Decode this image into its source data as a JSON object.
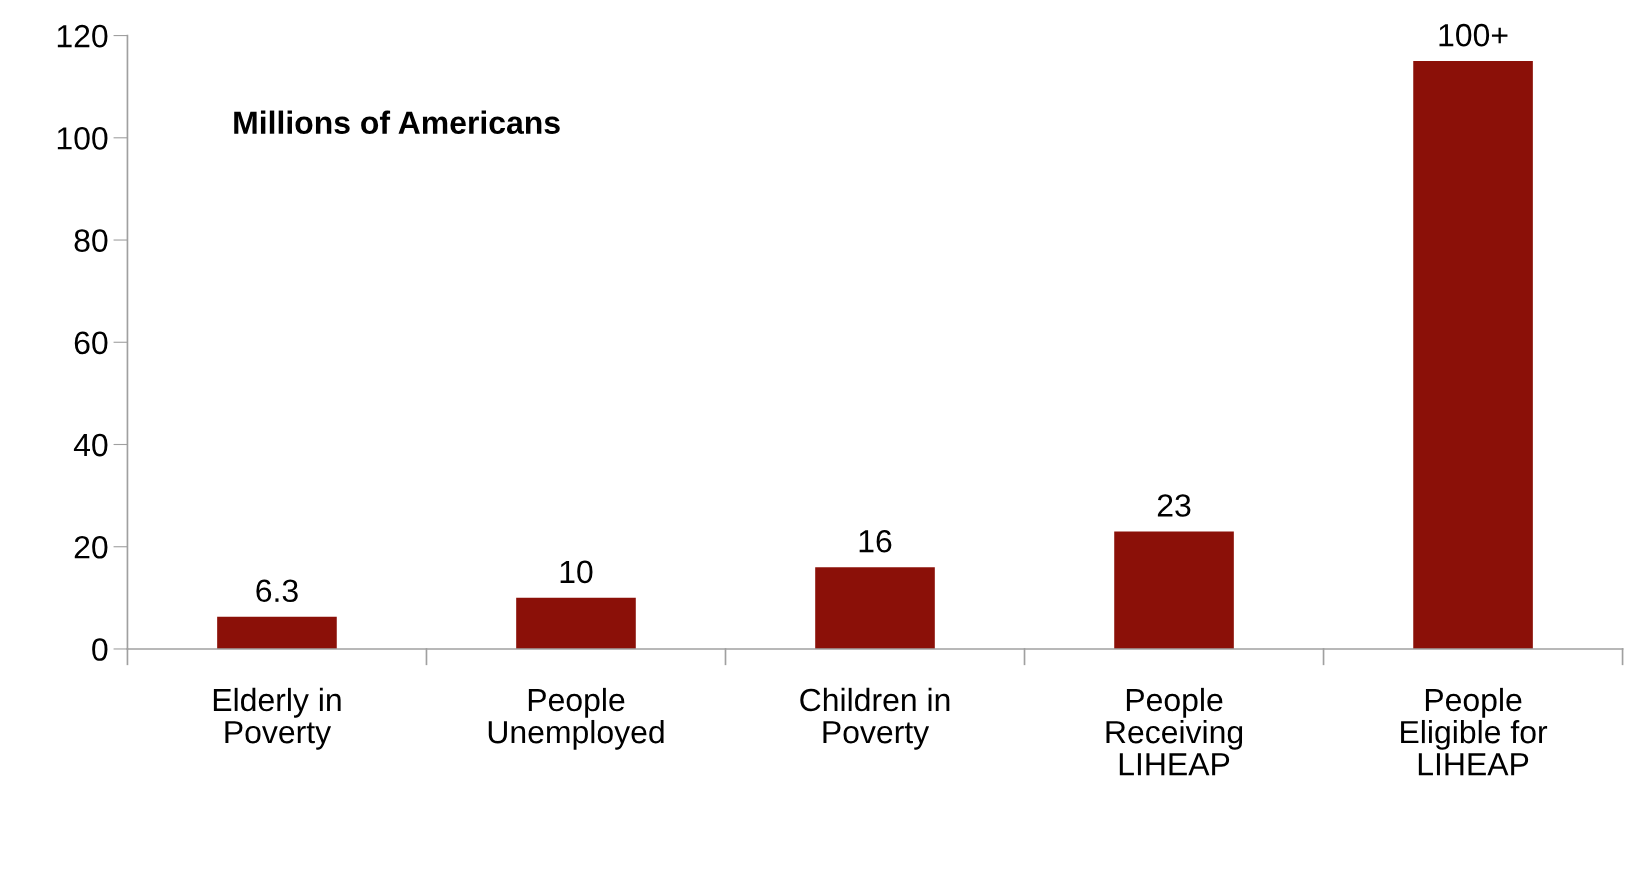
{
  "chart_data": {
    "type": "bar",
    "categories": [
      "Elderly in\nPoverty",
      "People\nUnemployed",
      "Children in\nPoverty",
      "People\nReceiving\nLIHEAP",
      "People\nEligible for\nLIHEAP"
    ],
    "values": [
      6.3,
      10,
      16,
      23,
      115
    ],
    "value_labels": [
      "6.3",
      "10",
      "16",
      "23",
      "100+"
    ],
    "color": "#8b1008",
    "annotations": [
      "Millions of Americans"
    ],
    "ylim": [
      0,
      120
    ],
    "yticks": [
      0,
      20,
      40,
      60,
      80,
      100,
      120
    ],
    "grid": false,
    "legend": false
  }
}
